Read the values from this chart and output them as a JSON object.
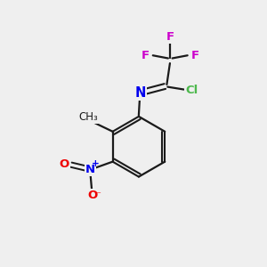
{
  "background_color": "#efefef",
  "bond_color": "#1a1a1a",
  "atom_colors": {
    "F": "#cc00cc",
    "Cl": "#4db84d",
    "N": "#0000ee",
    "O": "#ee0000",
    "C": "#1a1a1a"
  },
  "figsize": [
    3.0,
    3.0
  ],
  "dpi": 100
}
